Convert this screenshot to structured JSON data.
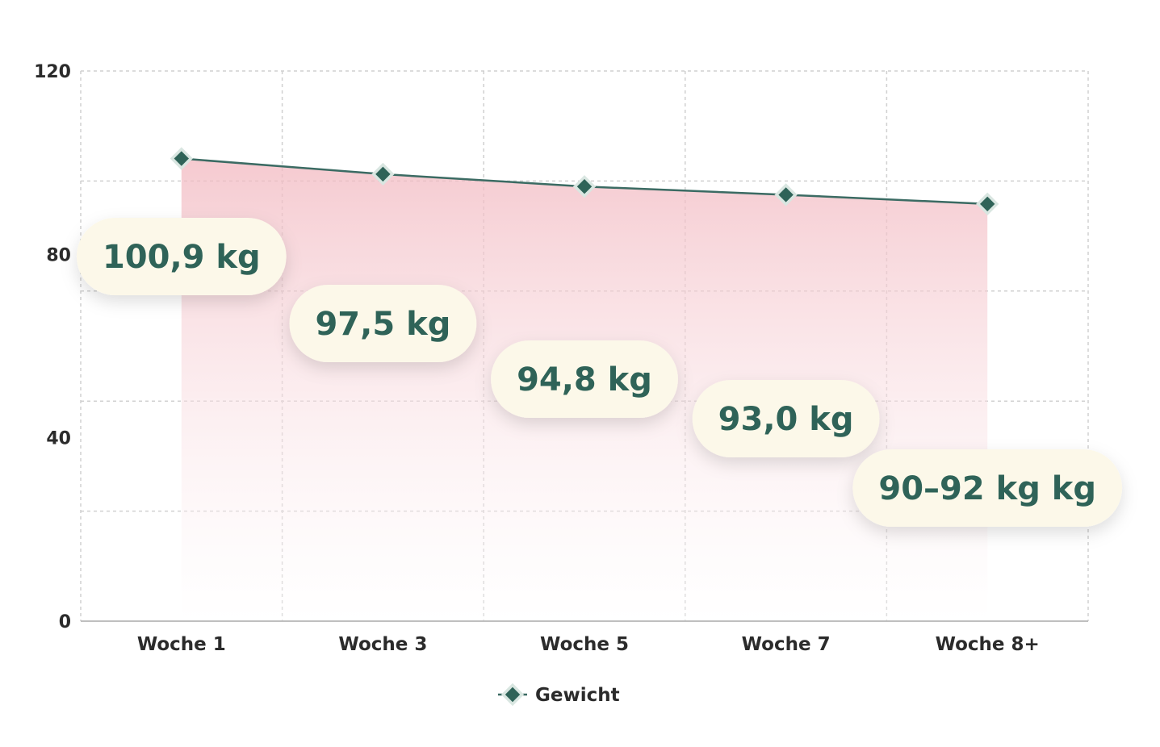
{
  "colors": {
    "line": "#3b6b63",
    "marker": "#2f6358",
    "marker_outline": "#d9e6e1",
    "pill_bg": "#fcf8e9",
    "pill_text": "#2f6358",
    "area_top": "#f2b8c0",
    "area_bottom": "#ffffff",
    "grid": "#d0d0d0",
    "axis": "#bfbfbf"
  },
  "chart_data": {
    "type": "area",
    "categories": [
      "Woche 1",
      "Woche 3",
      "Woche 5",
      "Woche 7",
      "Woche 8+"
    ],
    "series": [
      {
        "name": "Gewicht",
        "values": [
          100.9,
          97.5,
          94.8,
          93.0,
          91.0
        ],
        "labels": [
          "100,9 kg",
          "97,5 kg",
          "94,8 kg",
          "93,0 kg",
          "90–92 kg kg"
        ]
      }
    ],
    "ylim": [
      0,
      120
    ],
    "yticks": [
      0,
      40,
      80,
      120
    ],
    "grid": true,
    "legend_position": "bottom-center",
    "marker": "diamond"
  }
}
